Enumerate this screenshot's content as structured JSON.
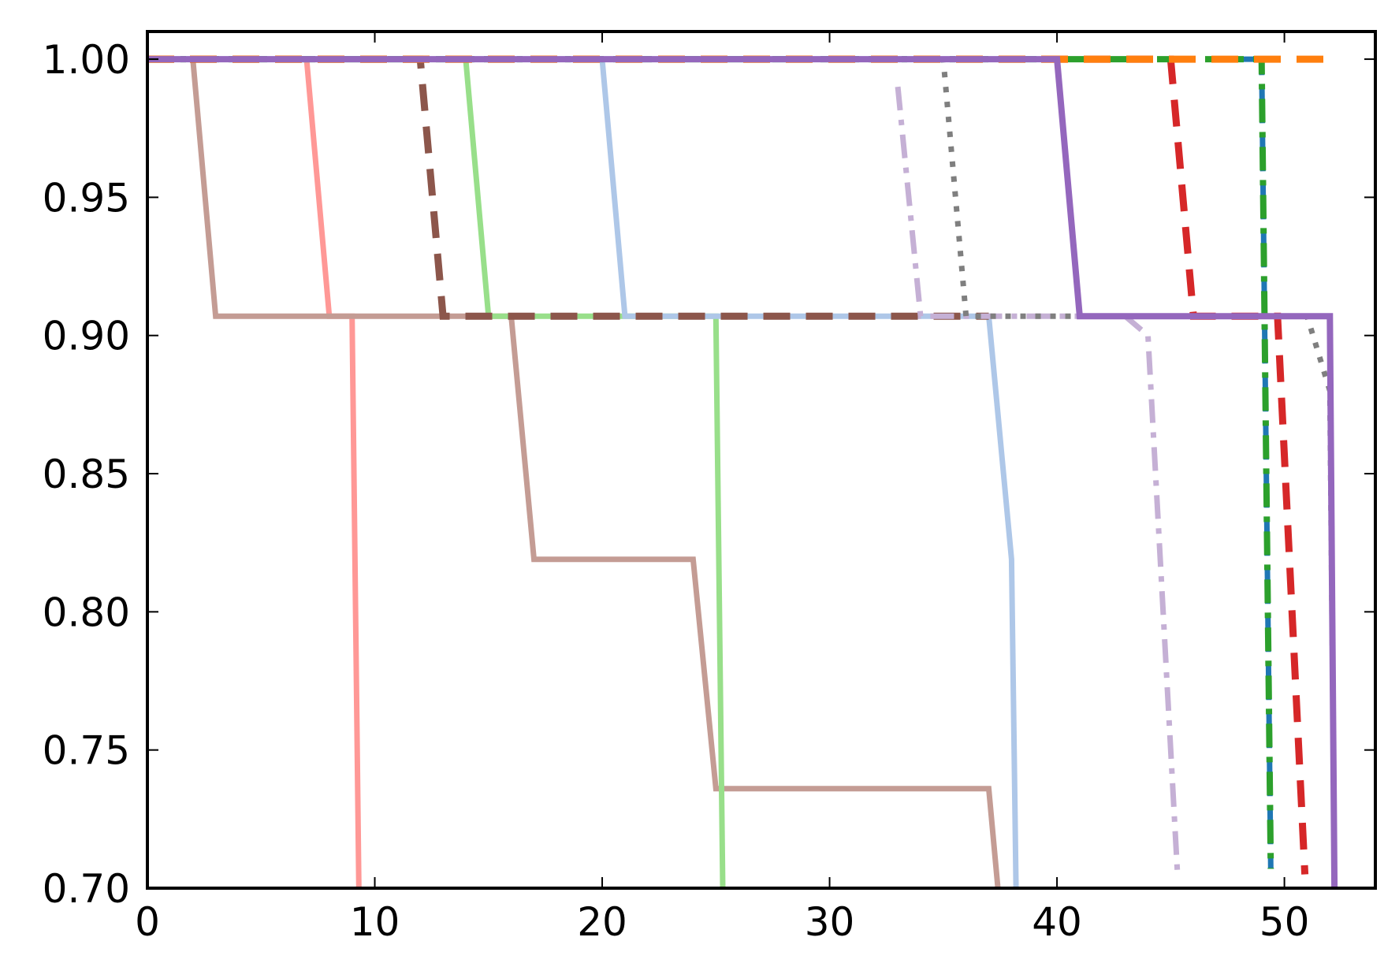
{
  "chart_data": {
    "type": "line",
    "title": "",
    "xlabel": "",
    "ylabel": "",
    "xlim": [
      0,
      54
    ],
    "ylim": [
      0.7,
      1.01
    ],
    "xticks": [
      "0",
      "10",
      "20",
      "30",
      "40",
      "50"
    ],
    "yticks": [
      "0.70",
      "0.75",
      "0.80",
      "0.85",
      "0.90",
      "0.95",
      "1.00"
    ],
    "grid": false,
    "legend": false,
    "series": [
      {
        "color": "#ff9896",
        "dash": "solid",
        "width": 7,
        "x": [
          0,
          7,
          8,
          9,
          9.3
        ],
        "y": [
          1.0,
          1.0,
          0.907,
          0.907,
          0.7
        ]
      },
      {
        "color": "#c49c94",
        "dash": "solid",
        "width": 7,
        "x": [
          0,
          2,
          3,
          16,
          17,
          24,
          25,
          37,
          37.4
        ],
        "y": [
          1.0,
          1.0,
          0.907,
          0.907,
          0.819,
          0.819,
          0.736,
          0.736,
          0.7
        ]
      },
      {
        "color": "#98df8a",
        "dash": "solid",
        "width": 7,
        "x": [
          0,
          14,
          15,
          25,
          25.3
        ],
        "y": [
          1.0,
          1.0,
          0.907,
          0.907,
          0.7
        ]
      },
      {
        "color": "#aec7e8",
        "dash": "solid",
        "width": 7,
        "x": [
          0,
          20,
          21,
          37,
          38,
          38.2
        ],
        "y": [
          1.0,
          1.0,
          0.907,
          0.907,
          0.819,
          0.7
        ]
      },
      {
        "color": "#8c564b",
        "dash": "dashed",
        "width": 9,
        "x": [
          0,
          12,
          13,
          37
        ],
        "y": [
          1.0,
          1.0,
          0.907,
          0.907
        ]
      },
      {
        "color": "#c5b0d5",
        "dash": "dashdot",
        "width": 7,
        "x": [
          33,
          34,
          43,
          44,
          45.3
        ],
        "y": [
          0.99,
          0.907,
          0.907,
          0.9,
          0.705
        ]
      },
      {
        "color": "#7f7f7f",
        "dash": "dotted",
        "width": 7,
        "x": [
          0,
          35,
          36,
          51,
          52,
          52.2
        ],
        "y": [
          1.0,
          1.0,
          0.907,
          0.907,
          0.88,
          0.705
        ]
      },
      {
        "color": "#d62728",
        "dash": "dashed",
        "width": 9,
        "x": [
          0,
          45,
          46,
          49.7,
          50.9
        ],
        "y": [
          1.0,
          1.0,
          0.907,
          0.907,
          0.705
        ]
      },
      {
        "color": "#1f77b4",
        "dash": "dashdot",
        "width": 7,
        "x": [
          48,
          49,
          49.4
        ],
        "y": [
          1.0,
          1.0,
          0.707
        ]
      },
      {
        "color": "#2ca02c",
        "dash": "dashdot",
        "width": 8,
        "x": [
          0,
          49,
          49.4
        ],
        "y": [
          1.0,
          1.0,
          0.707
        ]
      },
      {
        "color": "#ff7f0e",
        "dash": "dashed",
        "width": 9,
        "x": [
          0,
          52.2
        ],
        "y": [
          1.0,
          1.0
        ]
      },
      {
        "color": "#9467bd",
        "dash": "solid",
        "width": 8,
        "x": [
          0,
          40,
          41,
          52,
          52.2
        ],
        "y": [
          1.0,
          1.0,
          0.907,
          0.907,
          0.7
        ]
      }
    ]
  }
}
